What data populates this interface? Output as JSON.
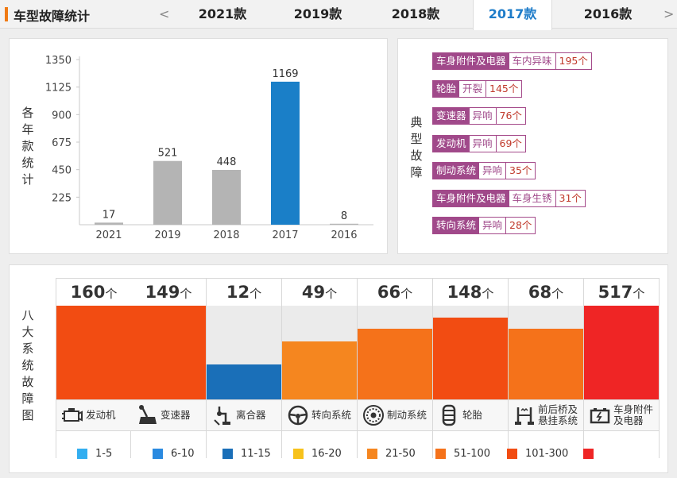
{
  "header": {
    "title": "车型故障统计",
    "prev_arrow": "<",
    "next_arrow": ">",
    "tabs": [
      {
        "label": "2021款",
        "active": false
      },
      {
        "label": "2019款",
        "active": false
      },
      {
        "label": "2018款",
        "active": false
      },
      {
        "label": "2017款",
        "active": true
      },
      {
        "label": "2016款",
        "active": false
      }
    ]
  },
  "bar_panel": {
    "ylabel_chars": [
      "各",
      "年",
      "款",
      "统",
      "计"
    ]
  },
  "chart_data": {
    "type": "bar",
    "categories": [
      "2021",
      "2019",
      "2018",
      "2017",
      "2016"
    ],
    "values": [
      17,
      521,
      448,
      1169,
      8
    ],
    "highlight_category": "2017",
    "colors": {
      "default": "#b4b4b4",
      "highlight": "#1a7fc8"
    },
    "yticks": [
      225,
      450,
      675,
      900,
      1125,
      1350
    ],
    "ylim": [
      0,
      1350
    ],
    "grid": false
  },
  "fault_panel": {
    "label_chars": [
      "典",
      "型",
      "故",
      "障"
    ],
    "items": [
      {
        "category": "车身附件及电器",
        "type": "车内异味",
        "count": "195个"
      },
      {
        "category": "轮胎",
        "type": "开裂",
        "count": "145个"
      },
      {
        "category": "变速器",
        "type": "异响",
        "count": "76个"
      },
      {
        "category": "发动机",
        "type": "异响",
        "count": "69个"
      },
      {
        "category": "制动系统",
        "type": "异响",
        "count": "35个"
      },
      {
        "category": "车身附件及电器",
        "type": "车身生锈",
        "count": "31个"
      },
      {
        "category": "转向系统",
        "type": "异响",
        "count": "28个"
      }
    ]
  },
  "system_panel": {
    "label_chars": [
      "八",
      "大",
      "系",
      "统",
      "故",
      "障",
      "图"
    ],
    "unit": "个",
    "systems": [
      {
        "name": "发动机",
        "value": "160",
        "level": 1.0,
        "color": "#f24c12",
        "icon": "engine-icon"
      },
      {
        "name": "变速器",
        "value": "149",
        "level": 1.0,
        "color": "#f24c12",
        "icon": "gear-shift-icon"
      },
      {
        "name": "离合器",
        "value": "12",
        "level": 0.37,
        "color": "#1a6fb8",
        "icon": "clutch-icon"
      },
      {
        "name": "转向系统",
        "value": "49",
        "level": 0.62,
        "color": "#f5861f",
        "icon": "steering-wheel-icon"
      },
      {
        "name": "制动系统",
        "value": "66",
        "level": 0.75,
        "color": "#f5721a",
        "icon": "brake-disc-icon"
      },
      {
        "name": "轮胎",
        "value": "148",
        "level": 0.87,
        "color": "#f24c12",
        "icon": "tire-icon"
      },
      {
        "name": "前后桥及悬挂系统",
        "name_lines": [
          "前后桥及",
          "悬挂系统"
        ],
        "value": "68",
        "level": 0.75,
        "color": "#f5721a",
        "icon": "suspension-icon"
      },
      {
        "name": "车身附件及电器",
        "name_lines": [
          "车身附件",
          "及电器"
        ],
        "value": "517",
        "level": 1.0,
        "color": "#ef2525",
        "icon": "battery-icon"
      }
    ],
    "legend": [
      {
        "label": "1-5",
        "color": "#33aef0"
      },
      {
        "label": "6-10",
        "color": "#2a8ae0"
      },
      {
        "label": "11-15",
        "color": "#1a6fb8"
      },
      {
        "label": "16-20",
        "color": "#f7c21b"
      },
      {
        "label": "21-50",
        "color": "#f5861f"
      },
      {
        "label": "51-100",
        "color": "#f5721a"
      },
      {
        "label": "101-300",
        "color": "#f24c12"
      },
      {
        "label": "",
        "color": "#ef2525"
      }
    ]
  }
}
